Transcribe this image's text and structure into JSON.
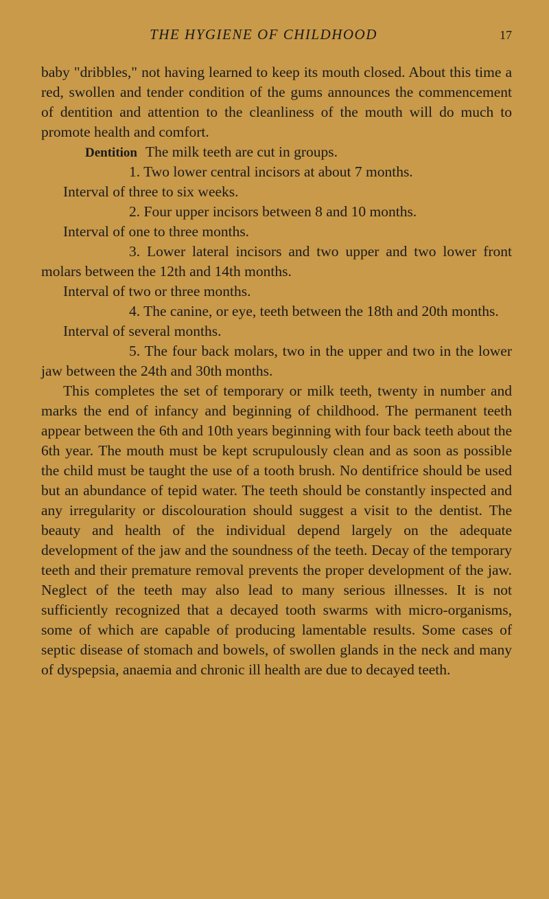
{
  "header": {
    "running_title": "THE HYGIENE OF CHILDHOOD",
    "page_number": "17"
  },
  "paragraphs": {
    "p1": "baby \"dribbles,\" not having learned to keep its mouth closed. About this time a red, swollen and tender condition of the gums announces the commencement of dentition and attention to the cleanliness of the mouth will do much to promote health and comfort.",
    "sidenote": "Dentition",
    "p2a": "The milk teeth are cut in groups.",
    "p2b": "1. Two lower central incisors at about 7 months.",
    "p3": "Interval of three to six weeks.",
    "p4": "2. Four upper incisors between 8 and 10 months.",
    "p5": "Interval of one to three months.",
    "p6": "3. Lower lateral incisors and two upper and two lower front molars between the 12th and 14th months.",
    "p7": "Interval of two or three months.",
    "p8": "4. The canine, or eye, teeth between the 18th and 20th months.",
    "p9": "Interval of several months.",
    "p10": "5. The four back molars, two in the upper and two in the lower jaw between the 24th and 30th months.",
    "p11": "This completes the set of temporary or milk teeth, twenty in number and marks the end of infancy and beginning of childhood. The permanent teeth appear between the 6th and 10th years beginning with four back teeth about the 6th year. The mouth must be kept scrupulously clean and as soon as possible the child must be taught the use of a tooth brush. No dentifrice should be used but an abundance of tepid water. The teeth should be constantly inspected and any irregularity or discolouration should suggest a visit to the dentist. The beauty and health of the individual depend largely on the adequate development of the jaw and the soundness of the teeth. Decay of the temporary teeth and their premature removal prevents the proper development of the jaw. Neglect of the teeth may also lead to many serious illnesses. It is not sufficiently recognized that a decayed tooth swarms with micro-organisms, some of which are capable of producing lamentable results. Some cases of septic disease of stomach and bowels, of swollen glands in the neck and many of dyspepsia, anaemia and chronic ill health are due to decayed teeth."
  },
  "colors": {
    "background": "#c99a4a",
    "text": "#1a1a1a"
  },
  "typography": {
    "body_fontsize": 21.5,
    "header_fontsize": 21,
    "line_height": 1.35
  }
}
